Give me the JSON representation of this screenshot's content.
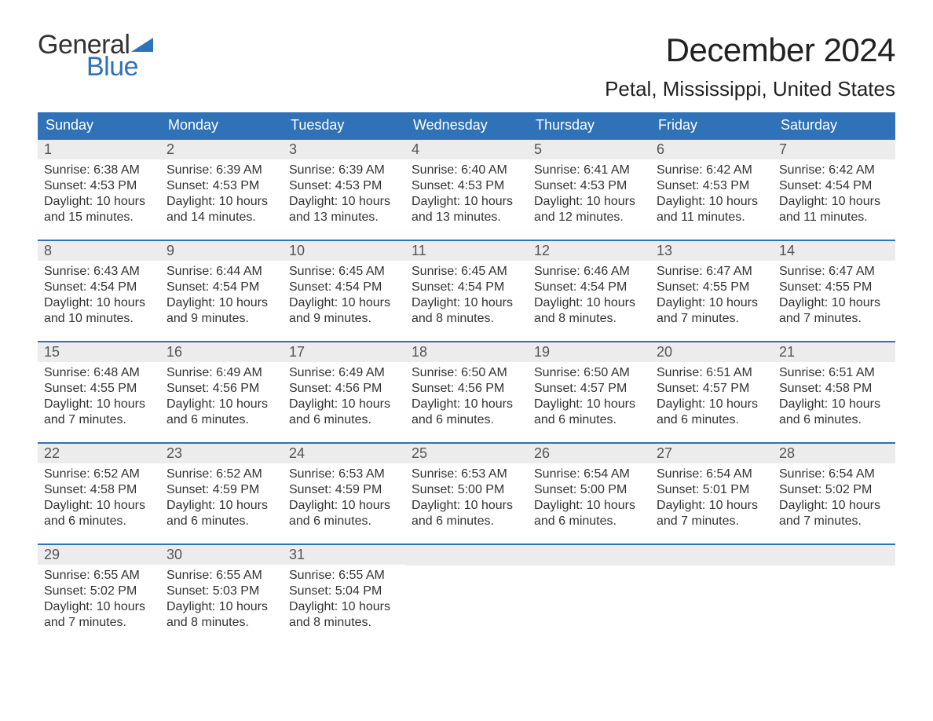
{
  "brand": {
    "word1": "General",
    "word2": "Blue",
    "flag_color": "#2f72b8"
  },
  "title": "December 2024",
  "location": "Petal, Mississippi, United States",
  "colors": {
    "header_bg": "#2f72b8",
    "header_text": "#ffffff",
    "week_border": "#2f72b8",
    "daynum_bg": "#ececec",
    "daynum_text": "#555555",
    "body_text": "#333333",
    "page_bg": "#ffffff"
  },
  "day_names": [
    "Sunday",
    "Monday",
    "Tuesday",
    "Wednesday",
    "Thursday",
    "Friday",
    "Saturday"
  ],
  "weeks": [
    [
      {
        "n": "1",
        "sr": "Sunrise: 6:38 AM",
        "ss": "Sunset: 4:53 PM",
        "d1": "Daylight: 10 hours",
        "d2": "and 15 minutes."
      },
      {
        "n": "2",
        "sr": "Sunrise: 6:39 AM",
        "ss": "Sunset: 4:53 PM",
        "d1": "Daylight: 10 hours",
        "d2": "and 14 minutes."
      },
      {
        "n": "3",
        "sr": "Sunrise: 6:39 AM",
        "ss": "Sunset: 4:53 PM",
        "d1": "Daylight: 10 hours",
        "d2": "and 13 minutes."
      },
      {
        "n": "4",
        "sr": "Sunrise: 6:40 AM",
        "ss": "Sunset: 4:53 PM",
        "d1": "Daylight: 10 hours",
        "d2": "and 13 minutes."
      },
      {
        "n": "5",
        "sr": "Sunrise: 6:41 AM",
        "ss": "Sunset: 4:53 PM",
        "d1": "Daylight: 10 hours",
        "d2": "and 12 minutes."
      },
      {
        "n": "6",
        "sr": "Sunrise: 6:42 AM",
        "ss": "Sunset: 4:53 PM",
        "d1": "Daylight: 10 hours",
        "d2": "and 11 minutes."
      },
      {
        "n": "7",
        "sr": "Sunrise: 6:42 AM",
        "ss": "Sunset: 4:54 PM",
        "d1": "Daylight: 10 hours",
        "d2": "and 11 minutes."
      }
    ],
    [
      {
        "n": "8",
        "sr": "Sunrise: 6:43 AM",
        "ss": "Sunset: 4:54 PM",
        "d1": "Daylight: 10 hours",
        "d2": "and 10 minutes."
      },
      {
        "n": "9",
        "sr": "Sunrise: 6:44 AM",
        "ss": "Sunset: 4:54 PM",
        "d1": "Daylight: 10 hours",
        "d2": "and 9 minutes."
      },
      {
        "n": "10",
        "sr": "Sunrise: 6:45 AM",
        "ss": "Sunset: 4:54 PM",
        "d1": "Daylight: 10 hours",
        "d2": "and 9 minutes."
      },
      {
        "n": "11",
        "sr": "Sunrise: 6:45 AM",
        "ss": "Sunset: 4:54 PM",
        "d1": "Daylight: 10 hours",
        "d2": "and 8 minutes."
      },
      {
        "n": "12",
        "sr": "Sunrise: 6:46 AM",
        "ss": "Sunset: 4:54 PM",
        "d1": "Daylight: 10 hours",
        "d2": "and 8 minutes."
      },
      {
        "n": "13",
        "sr": "Sunrise: 6:47 AM",
        "ss": "Sunset: 4:55 PM",
        "d1": "Daylight: 10 hours",
        "d2": "and 7 minutes."
      },
      {
        "n": "14",
        "sr": "Sunrise: 6:47 AM",
        "ss": "Sunset: 4:55 PM",
        "d1": "Daylight: 10 hours",
        "d2": "and 7 minutes."
      }
    ],
    [
      {
        "n": "15",
        "sr": "Sunrise: 6:48 AM",
        "ss": "Sunset: 4:55 PM",
        "d1": "Daylight: 10 hours",
        "d2": "and 7 minutes."
      },
      {
        "n": "16",
        "sr": "Sunrise: 6:49 AM",
        "ss": "Sunset: 4:56 PM",
        "d1": "Daylight: 10 hours",
        "d2": "and 6 minutes."
      },
      {
        "n": "17",
        "sr": "Sunrise: 6:49 AM",
        "ss": "Sunset: 4:56 PM",
        "d1": "Daylight: 10 hours",
        "d2": "and 6 minutes."
      },
      {
        "n": "18",
        "sr": "Sunrise: 6:50 AM",
        "ss": "Sunset: 4:56 PM",
        "d1": "Daylight: 10 hours",
        "d2": "and 6 minutes."
      },
      {
        "n": "19",
        "sr": "Sunrise: 6:50 AM",
        "ss": "Sunset: 4:57 PM",
        "d1": "Daylight: 10 hours",
        "d2": "and 6 minutes."
      },
      {
        "n": "20",
        "sr": "Sunrise: 6:51 AM",
        "ss": "Sunset: 4:57 PM",
        "d1": "Daylight: 10 hours",
        "d2": "and 6 minutes."
      },
      {
        "n": "21",
        "sr": "Sunrise: 6:51 AM",
        "ss": "Sunset: 4:58 PM",
        "d1": "Daylight: 10 hours",
        "d2": "and 6 minutes."
      }
    ],
    [
      {
        "n": "22",
        "sr": "Sunrise: 6:52 AM",
        "ss": "Sunset: 4:58 PM",
        "d1": "Daylight: 10 hours",
        "d2": "and 6 minutes."
      },
      {
        "n": "23",
        "sr": "Sunrise: 6:52 AM",
        "ss": "Sunset: 4:59 PM",
        "d1": "Daylight: 10 hours",
        "d2": "and 6 minutes."
      },
      {
        "n": "24",
        "sr": "Sunrise: 6:53 AM",
        "ss": "Sunset: 4:59 PM",
        "d1": "Daylight: 10 hours",
        "d2": "and 6 minutes."
      },
      {
        "n": "25",
        "sr": "Sunrise: 6:53 AM",
        "ss": "Sunset: 5:00 PM",
        "d1": "Daylight: 10 hours",
        "d2": "and 6 minutes."
      },
      {
        "n": "26",
        "sr": "Sunrise: 6:54 AM",
        "ss": "Sunset: 5:00 PM",
        "d1": "Daylight: 10 hours",
        "d2": "and 6 minutes."
      },
      {
        "n": "27",
        "sr": "Sunrise: 6:54 AM",
        "ss": "Sunset: 5:01 PM",
        "d1": "Daylight: 10 hours",
        "d2": "and 7 minutes."
      },
      {
        "n": "28",
        "sr": "Sunrise: 6:54 AM",
        "ss": "Sunset: 5:02 PM",
        "d1": "Daylight: 10 hours",
        "d2": "and 7 minutes."
      }
    ],
    [
      {
        "n": "29",
        "sr": "Sunrise: 6:55 AM",
        "ss": "Sunset: 5:02 PM",
        "d1": "Daylight: 10 hours",
        "d2": "and 7 minutes."
      },
      {
        "n": "30",
        "sr": "Sunrise: 6:55 AM",
        "ss": "Sunset: 5:03 PM",
        "d1": "Daylight: 10 hours",
        "d2": "and 8 minutes."
      },
      {
        "n": "31",
        "sr": "Sunrise: 6:55 AM",
        "ss": "Sunset: 5:04 PM",
        "d1": "Daylight: 10 hours",
        "d2": "and 8 minutes."
      },
      null,
      null,
      null,
      null
    ]
  ]
}
